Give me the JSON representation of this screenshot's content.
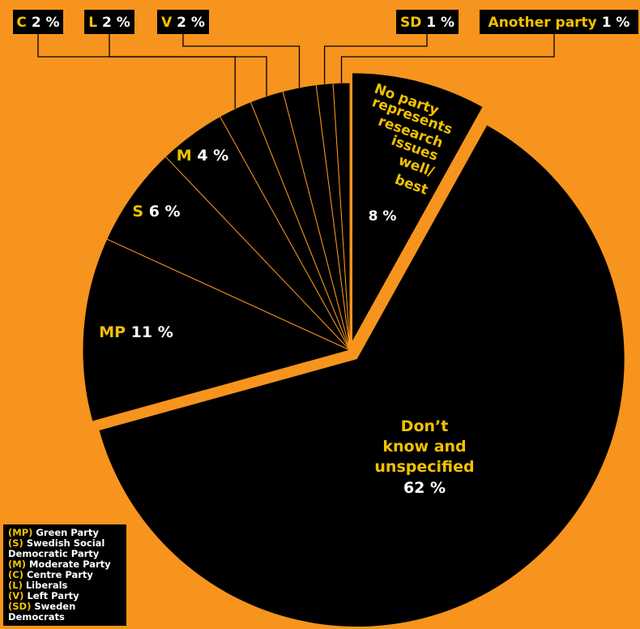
{
  "colors": {
    "background": "#F7941D",
    "slice": "#000000",
    "abbr_text": "#F2C200",
    "value_text": "#FFFFFF",
    "leader": "#F7941D"
  },
  "chart_data": {
    "type": "pie",
    "title": "",
    "slices": [
      {
        "abbr": "",
        "name": "No party represents research issues well/ best",
        "value": 8,
        "label_lines": [
          "No party",
          "represents",
          "research",
          "issues",
          "well/",
          "best"
        ],
        "value_text": "8 %"
      },
      {
        "abbr": "",
        "name": "Don’t know and unspecified",
        "value": 62,
        "label_lines": [
          "Don’t",
          "know and",
          "unspecified"
        ],
        "value_text": "62 %"
      },
      {
        "abbr": "MP",
        "name": "Green Party",
        "value": 11,
        "value_text": "11 %"
      },
      {
        "abbr": "S",
        "name": "Swedish Social Democratic Party",
        "value": 6,
        "value_text": "6 %"
      },
      {
        "abbr": "M",
        "name": "Moderate Party",
        "value": 4,
        "value_text": "4 %"
      },
      {
        "abbr": "C",
        "name": "Centre Party",
        "value": 2,
        "value_text": "2 %"
      },
      {
        "abbr": "L",
        "name": "Liberals",
        "value": 2,
        "value_text": "2 %"
      },
      {
        "abbr": "V",
        "name": "Left Party",
        "value": 2,
        "value_text": "2 %"
      },
      {
        "abbr": "SD",
        "name": "Sweden Democrats",
        "value": 1,
        "value_text": "1 %"
      },
      {
        "abbr": "Another party",
        "name": "Another party",
        "value": 1,
        "value_text": "1 %"
      }
    ]
  },
  "legend": [
    {
      "abbr": "(MP)",
      "text": "Green Party"
    },
    {
      "abbr": "(S)",
      "text": "Swedish Social Democratic Party"
    },
    {
      "abbr": "(M)",
      "text": "Moderate Party"
    },
    {
      "abbr": "(C)",
      "text": "Centre Party"
    },
    {
      "abbr": "(L)",
      "text": "Liberals"
    },
    {
      "abbr": "(V)",
      "text": "Left Party"
    },
    {
      "abbr": "(SD)",
      "text": "Sweden Democrats"
    }
  ]
}
